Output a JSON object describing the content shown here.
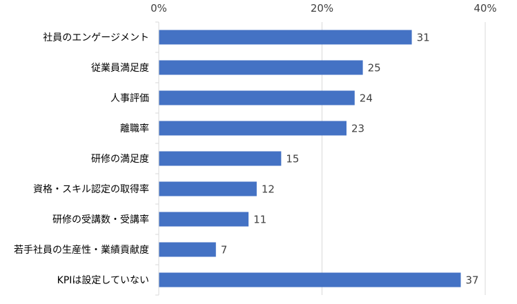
{
  "chart_data": {
    "type": "bar",
    "orientation": "horizontal",
    "title": "",
    "xlabel": "",
    "ylabel": "",
    "categories": [
      "社員のエンゲージメント",
      "従業員満足度",
      "人事評価",
      "離職率",
      "研修の満足度",
      "資格・スキル認定の取得率",
      "研修の受講数・受講率",
      "若手社員の生産性・業績貢献度",
      "KPIは設定していない"
    ],
    "values": [
      31,
      25,
      24,
      23,
      15,
      12,
      11,
      7,
      37
    ],
    "xlim": [
      0,
      40
    ],
    "xticks": [
      0,
      20,
      40
    ],
    "xtick_labels": [
      "0%",
      "20%",
      "40%"
    ],
    "x_axis_position": "top",
    "grid": true,
    "legend": "none",
    "bar_color": "#4472C4",
    "grid_color": "#D9D9D9"
  }
}
